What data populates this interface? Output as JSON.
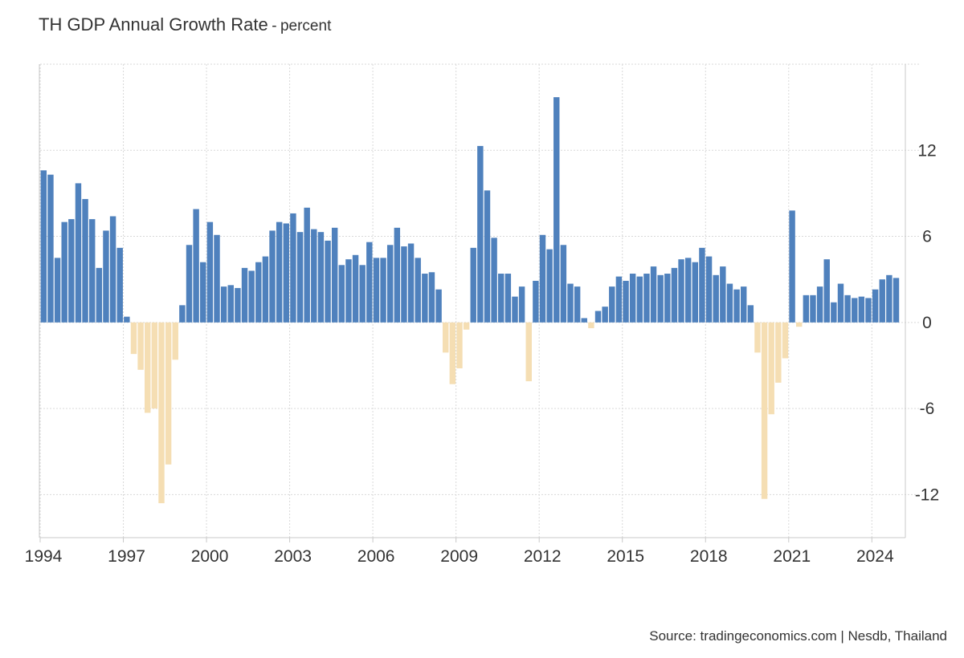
{
  "header": {
    "title": "TH GDP Annual Growth Rate",
    "separator": "-",
    "subtitle": "percent"
  },
  "footer": {
    "source": "Source: tradingeconomics.com | Nesdb, Thailand"
  },
  "colors": {
    "positive": "#4f81bd",
    "negative": "#f5deb3",
    "grid": "#d9d9d9",
    "axis": "#c8c8c8",
    "text": "#333333"
  },
  "chart_data": {
    "type": "bar",
    "title": "TH GDP Annual Growth Rate",
    "subtitle": "percent",
    "xlabel": "",
    "ylabel": "",
    "frequency": "quarterly",
    "start": [
      1994,
      1
    ],
    "xlim": [
      1994,
      2025.15
    ],
    "ylim": [
      -15,
      18
    ],
    "y_ticks": [
      12,
      6,
      0,
      -6,
      -12
    ],
    "y_tick_labels": [
      "12",
      "6",
      "0",
      "-6",
      "-12"
    ],
    "x_ticks": [
      1994,
      1997,
      2000,
      2003,
      2006,
      2009,
      2012,
      2015,
      2018,
      2021,
      2024
    ],
    "x_tick_labels": [
      "1994",
      "1997",
      "2000",
      "2003",
      "2006",
      "2009",
      "2012",
      "2015",
      "2018",
      "2021",
      "2024"
    ],
    "grid": true,
    "y_axis_position": "right",
    "values": [
      10.6,
      10.3,
      4.5,
      7.0,
      7.2,
      9.7,
      8.6,
      7.2,
      3.8,
      6.4,
      7.4,
      5.2,
      0.4,
      -2.2,
      -3.3,
      -6.3,
      -6.0,
      -12.6,
      -9.9,
      -2.6,
      1.2,
      5.4,
      7.9,
      4.2,
      7.0,
      6.1,
      2.5,
      2.6,
      2.4,
      3.8,
      3.6,
      4.2,
      4.6,
      6.4,
      7.0,
      6.9,
      7.6,
      6.3,
      8.0,
      6.5,
      6.3,
      5.7,
      6.6,
      4.0,
      4.4,
      4.7,
      4.0,
      5.6,
      4.5,
      4.5,
      5.4,
      6.6,
      5.3,
      5.5,
      4.5,
      3.4,
      3.5,
      2.3,
      -2.1,
      -4.3,
      -3.2,
      -0.5,
      5.2,
      12.3,
      9.2,
      5.9,
      3.4,
      3.4,
      1.8,
      2.5,
      -4.1,
      2.9,
      6.1,
      5.1,
      15.7,
      5.4,
      2.7,
      2.5,
      0.3,
      -0.4,
      0.8,
      1.1,
      2.5,
      3.2,
      2.9,
      3.4,
      3.2,
      3.4,
      3.9,
      3.3,
      3.4,
      3.8,
      4.4,
      4.5,
      4.2,
      5.2,
      4.6,
      3.3,
      3.9,
      2.7,
      2.3,
      2.5,
      1.2,
      -2.1,
      -12.3,
      -6.4,
      -4.2,
      -2.5,
      7.8,
      -0.3,
      1.9,
      1.9,
      2.5,
      4.4,
      1.4,
      2.7,
      1.9,
      1.7,
      1.8,
      1.7,
      2.3,
      3.0,
      3.3,
      3.1
    ]
  }
}
